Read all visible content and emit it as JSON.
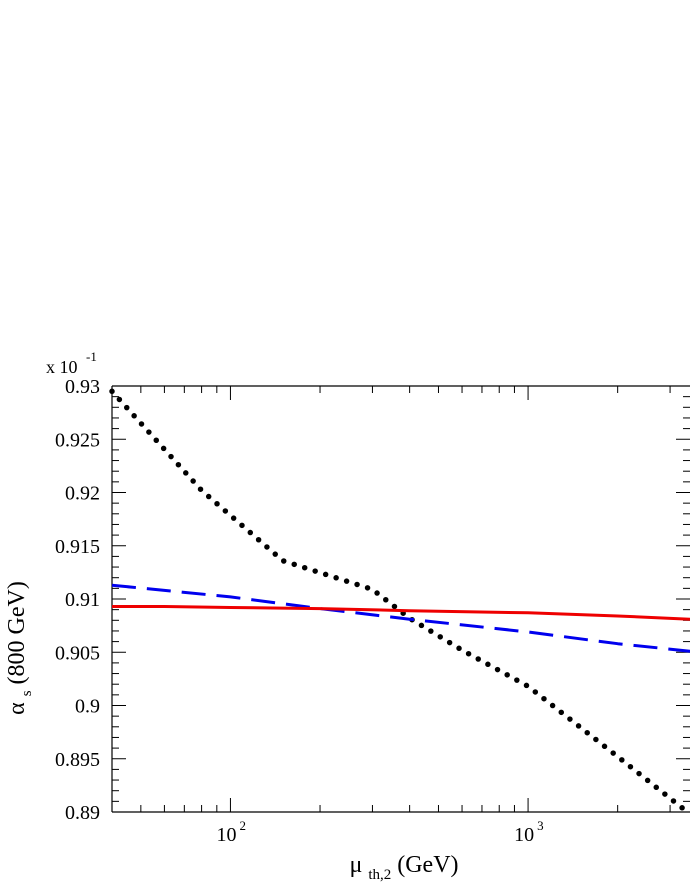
{
  "chart_data": {
    "type": "line",
    "xlabel": {
      "main": "μ",
      "sub": "th,2",
      "unit": " (GeV)"
    },
    "ylabel": {
      "main": "α",
      "sub": "s",
      "unit": "(800 GeV)"
    },
    "y_scale_label": {
      "base": "x 10",
      "exponent": "-1"
    },
    "x_scale": "log",
    "xlim": [
      40,
      3500
    ],
    "ylim": [
      0.89,
      0.93
    ],
    "y_ticks": [
      "0.93",
      "0.925",
      "0.92",
      "0.915",
      "0.91",
      "0.905",
      "0.9",
      "0.895",
      "0.89"
    ],
    "x_ticks": [
      {
        "value": 100,
        "base": "10",
        "exponent": "2"
      },
      {
        "value": 1000,
        "base": "10",
        "exponent": "3"
      }
    ],
    "grid": false,
    "legend": "none",
    "series": [
      {
        "color": "#000000",
        "style": "dotted",
        "x": [
          40,
          80,
          150,
          300,
          400,
          600,
          1000,
          2000,
          3500
        ],
        "y": [
          0.9295,
          0.9202,
          0.9136,
          0.9109,
          0.9082,
          0.9052,
          0.9018,
          0.8952,
          0.8898
        ]
      },
      {
        "color": "#0000ee",
        "style": "dashed",
        "x": [
          40,
          100,
          200,
          400,
          1000,
          2000,
          3500
        ],
        "y": [
          0.9113,
          0.9102,
          0.9091,
          0.9081,
          0.9069,
          0.9058,
          0.9051
        ]
      },
      {
        "color": "#ee0000",
        "style": "solid",
        "x": [
          40,
          60,
          100,
          200,
          400,
          1000,
          2000,
          3500
        ],
        "y": [
          0.9093,
          0.9093,
          0.9092,
          0.9091,
          0.9089,
          0.9087,
          0.9084,
          0.9081
        ]
      }
    ]
  }
}
